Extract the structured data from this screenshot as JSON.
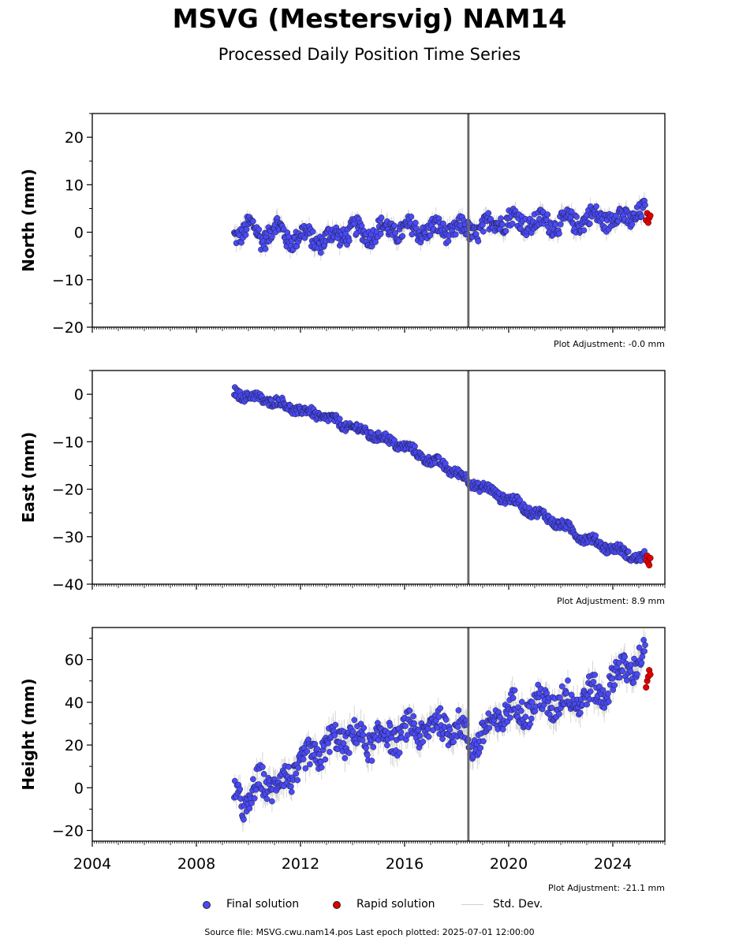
{
  "title": "MSVG (Mestersvig) NAM14",
  "subtitle": "Processed Daily Position Time Series",
  "legend": {
    "final": "Final solution",
    "rapid": "Rapid solution",
    "stddev": "Std. Dev."
  },
  "source_text": "Source file: MSVG.cwu.nam14.pos  Last epoch plotted: 2025-07-01 12:00:00",
  "colors": {
    "final": "#4a4af5",
    "rapid": "#e00000",
    "stddev": "#b0b0b0",
    "event_line": "#666666"
  },
  "chart_data": [
    {
      "type": "scatter",
      "ylabel": "North (mm)",
      "ylim": [
        -20,
        25
      ],
      "yticks": [
        -20,
        -10,
        0,
        10,
        20
      ],
      "xlim": [
        2004,
        2026
      ],
      "adjustment": "Plot Adjustment: -0.0 mm",
      "event_lines_x": [
        2018.45
      ],
      "series": [
        {
          "name": "Final solution",
          "x": [
            2009.5,
            2010.0,
            2010.5,
            2011.0,
            2011.5,
            2012.0,
            2012.5,
            2013.0,
            2013.5,
            2014.0,
            2014.5,
            2015.0,
            2015.5,
            2016.0,
            2016.5,
            2017.0,
            2017.5,
            2018.0,
            2018.5,
            2019.0,
            2019.5,
            2020.0,
            2020.5,
            2021.0,
            2021.5,
            2022.0,
            2022.5,
            2023.0,
            2023.5,
            2024.0,
            2024.5,
            2025.0
          ],
          "y": [
            -1.0,
            2.0,
            -2.0,
            2.0,
            -2.0,
            0.0,
            -2.0,
            -1.0,
            -1.0,
            1.0,
            -1.0,
            1.0,
            0.0,
            1.0,
            0.0,
            1.0,
            0.0,
            1.0,
            0.0,
            1.0,
            2.0,
            3.0,
            2.0,
            2.0,
            2.0,
            2.0,
            2.0,
            3.0,
            3.0,
            3.0,
            3.0,
            4.0
          ],
          "scatter": 3.0
        },
        {
          "name": "Rapid solution",
          "x": [
            2025.28,
            2025.32,
            2025.36,
            2025.4,
            2025.44
          ],
          "y": [
            2.5,
            4.0,
            2.0,
            3.0,
            3.5
          ]
        }
      ]
    },
    {
      "type": "scatter",
      "ylabel": "East (mm)",
      "ylim": [
        -40,
        5
      ],
      "yticks": [
        -40,
        -30,
        -20,
        -10,
        0
      ],
      "xlim": [
        2004,
        2026
      ],
      "adjustment": "Plot Adjustment: 8.9 mm",
      "event_lines_x": [
        2018.45
      ],
      "series": [
        {
          "name": "Final solution",
          "x": [
            2009.5,
            2010.0,
            2010.5,
            2011.0,
            2011.5,
            2012.0,
            2012.5,
            2013.0,
            2013.5,
            2014.0,
            2014.5,
            2015.0,
            2015.5,
            2016.0,
            2016.5,
            2017.0,
            2017.5,
            2018.0,
            2018.5,
            2019.0,
            2019.5,
            2020.0,
            2020.5,
            2021.0,
            2021.5,
            2022.0,
            2022.5,
            2023.0,
            2023.5,
            2024.0,
            2024.5,
            2025.0
          ],
          "y": [
            0.5,
            -0.5,
            -1.0,
            -1.5,
            -2.5,
            -3.5,
            -4.0,
            -5.0,
            -6.0,
            -7.0,
            -8.0,
            -9.0,
            -10.0,
            -11.0,
            -12.5,
            -14.0,
            -15.0,
            -16.5,
            -18.5,
            -19.5,
            -21.0,
            -22.0,
            -23.5,
            -25.0,
            -26.0,
            -27.5,
            -29.0,
            -30.5,
            -31.5,
            -32.5,
            -33.5,
            -34.5
          ],
          "scatter": 1.5
        },
        {
          "name": "Rapid solution",
          "x": [
            2025.28,
            2025.32,
            2025.36,
            2025.4,
            2025.44
          ],
          "y": [
            -35.0,
            -34.0,
            -35.5,
            -36.0,
            -34.5
          ]
        }
      ]
    },
    {
      "type": "scatter",
      "ylabel": "Height (mm)",
      "ylim": [
        -25,
        75
      ],
      "yticks": [
        -20,
        0,
        20,
        40,
        60
      ],
      "xlim": [
        2004,
        2026
      ],
      "xticks": [
        2004,
        2008,
        2012,
        2016,
        2020,
        2024
      ],
      "adjustment": "Plot Adjustment: -21.1 mm",
      "event_lines_x": [
        2018.45
      ],
      "series": [
        {
          "name": "Final solution",
          "x": [
            2009.5,
            2010.0,
            2010.5,
            2011.0,
            2011.5,
            2012.0,
            2012.5,
            2013.0,
            2013.5,
            2014.0,
            2014.5,
            2015.0,
            2015.5,
            2016.0,
            2016.5,
            2017.0,
            2017.5,
            2018.0,
            2018.5,
            2019.0,
            2019.5,
            2020.0,
            2020.5,
            2021.0,
            2021.5,
            2022.0,
            2022.5,
            2023.0,
            2023.5,
            2024.0,
            2024.5,
            2025.0
          ],
          "y": [
            0.0,
            -10.0,
            5.0,
            0.0,
            5.0,
            10.0,
            15.0,
            20.0,
            22.0,
            25.0,
            20.0,
            25.0,
            22.0,
            28.0,
            25.0,
            30.0,
            28.0,
            30.0,
            20.0,
            25.0,
            30.0,
            38.0,
            35.0,
            40.0,
            38.0,
            42.0,
            40.0,
            45.0,
            42.0,
            52.0,
            55.0,
            60.0
          ],
          "scatter": 10.0
        },
        {
          "name": "Rapid solution",
          "x": [
            2025.28,
            2025.32,
            2025.36,
            2025.4,
            2025.44
          ],
          "y": [
            47.0,
            50.0,
            52.0,
            55.0,
            53.0
          ]
        }
      ]
    }
  ]
}
